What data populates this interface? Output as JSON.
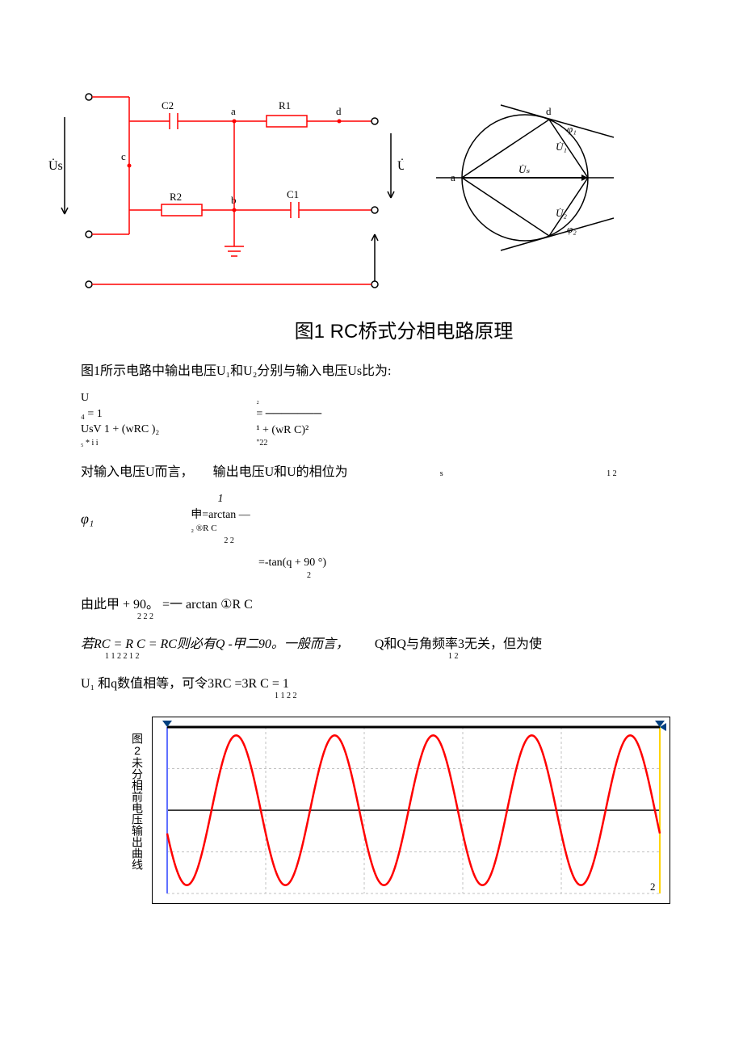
{
  "fig1": {
    "caption": "图1 RC桥式分相电路原理",
    "circuit": {
      "stroke": "#ff0000",
      "terminal_stroke": "#000000",
      "labels": {
        "Us": "U̇s",
        "U": "U̇",
        "C2": "C2",
        "R1": "R1",
        "R2": "R2",
        "C1": "C1",
        "a": "a",
        "b": "b",
        "c": "c",
        "d": "d"
      }
    },
    "phasor": {
      "stroke": "#000000",
      "labels": {
        "d": "d",
        "a": "a",
        "U1": "U̇₁",
        "U2": "U̇₂",
        "Us": "U̇ₛ",
        "phi1": "φ₁",
        "phi2": "φ₂"
      }
    }
  },
  "text": {
    "p1": "图1所示电路中输出电压U₁和U₂分别与输入电压Us比为:",
    "f1a": "U",
    "f1b": "₄  =   1",
    "f1c": "UsV  1 + (wRC )₂",
    "f1d": "₅              * i i",
    "f1e_r1": "₂",
    "f1e_r2": "= ───────",
    "f1e_r3": "¹ + (wR C)²",
    "f1e_r4": "\"22",
    "p2_a": "对输入电压U而言，",
    "p2_a_sub": "s",
    "p2_b": "输出电压U和U的相位为",
    "p2_b_sub": "1 2",
    "f2_phi1": "φ₁",
    "f2_r1": "1",
    "f2_r2": "申=arctan —",
    "f2_r3": "₂           ®R C",
    "f2_r4": "2 2",
    "f3": "=-tan(q + 90 °)",
    "f3_sub": "2",
    "p3": "由此甲 + 90。 =一  arctan ①R C",
    "p3_sub": "2 2 2",
    "p4_a": "若RC = R C = RC则必有Q -甲二90。一般而言，",
    "p4_a_sub": "1 1 2 2 1 2",
    "p4_b": "Q和Q与角频率3无关，但为使",
    "p4_b_sub": "1 2",
    "p5_a": "U₁ 和q数值相等，可令3RC =3R C = 1",
    "p5_sub": "1 1 2 2"
  },
  "fig2": {
    "label": "图2未分相前电压输出曲线",
    "chart": {
      "type": "line",
      "background": "#ffffff",
      "grid_color": "#c0c0c0",
      "axis_color": "#000000",
      "border_color": "#000000",
      "curve_color": "#ff0000",
      "top_marker_color": "#004080",
      "yellow_line": "#ffd400",
      "x_range": [
        0,
        5
      ],
      "y_range": [
        -1,
        1
      ],
      "cycles": 5,
      "amplitude": 0.9,
      "stroke_width": 2.5,
      "corner_label": "2"
    }
  }
}
